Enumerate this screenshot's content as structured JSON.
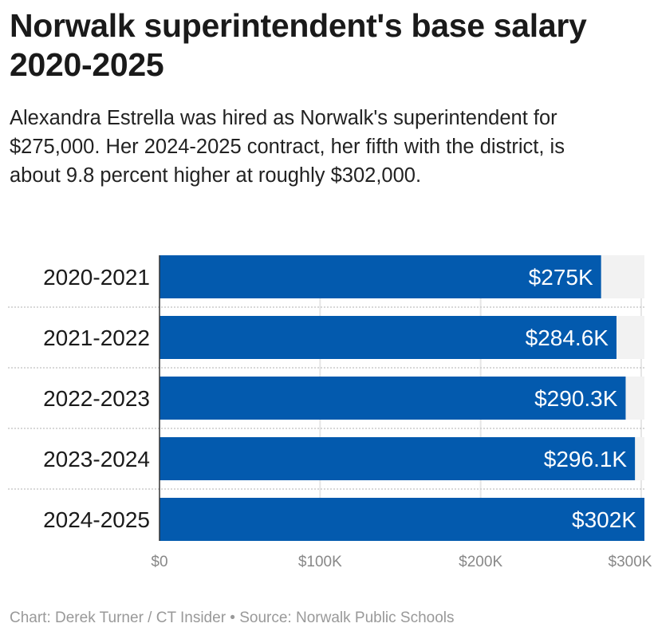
{
  "title": "Norwalk superintendent's base salary 2020-2025",
  "subtitle": "Alexandra Estrella was hired as Norwalk's superintendent for $275,000. Her 2024-2025 contract, her fifth with the district, is about 9.8 percent higher at roughly $302,000.",
  "footer": "Chart: Derek Turner / CT Insider • Source: Norwalk Public Schools",
  "chart_data": {
    "type": "bar",
    "orientation": "horizontal",
    "categories": [
      "2020-2021",
      "2021-2022",
      "2022-2023",
      "2023-2024",
      "2024-2025"
    ],
    "values": [
      275,
      284.6,
      290.3,
      296.1,
      302
    ],
    "data_labels": [
      "$275K",
      "$284.6K",
      "$290.3K",
      "$296.1K",
      "$302K"
    ],
    "unit": "thousand USD",
    "xlim": [
      0,
      302
    ],
    "x_ticks": [
      0,
      100,
      200,
      300
    ],
    "x_tick_labels": [
      "$0",
      "$100K",
      "$200K",
      "$300K"
    ],
    "grid": true,
    "bar_color": "#035aae",
    "track_color": "#f2f2f2"
  }
}
